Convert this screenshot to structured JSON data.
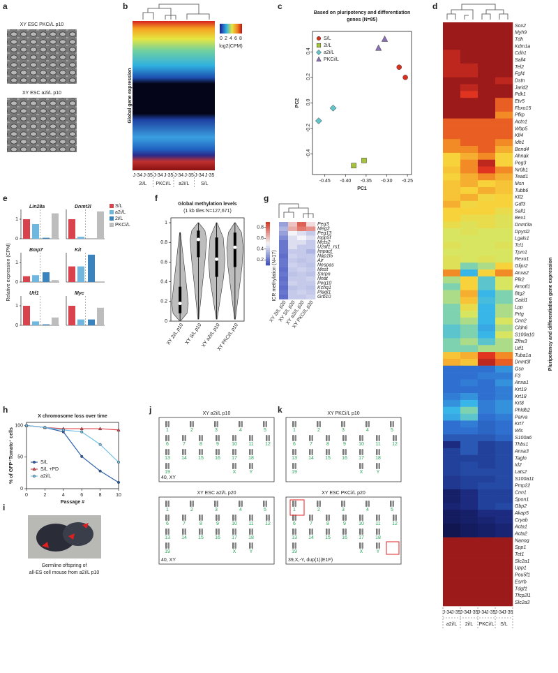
{
  "panel_letters": [
    "a",
    "b",
    "c",
    "d",
    "e",
    "f",
    "g",
    "h",
    "i",
    "j",
    "k"
  ],
  "panel_a": {
    "labels": [
      "XY ESC PKCi/L p10",
      "XY ESC a2i/L p10"
    ]
  },
  "panel_b": {
    "ylabel": "Global gene expression",
    "colorbar_ticks": [
      0,
      2,
      4,
      6,
      8
    ],
    "colorbar_label": "log2(CPM)",
    "column_labels": [
      "J-34",
      "J-35",
      "J-34",
      "J-35",
      "J-34",
      "J-35",
      "J-34",
      "J-35"
    ],
    "groups": [
      "2i/L",
      "PKCi/L",
      "a2i/L",
      "S/L"
    ]
  },
  "chart_data": [
    {
      "type": "scatter",
      "title": "Based on pluripotency and differentiation",
      "subtitle": "genes (N=85)",
      "xlabel": "PC1",
      "ylabel": "PC2",
      "legend": "upper left",
      "series": [
        {
          "name": "S/L",
          "color": "#d7301f",
          "marker": "circle",
          "x": [
            -0.27,
            -0.255
          ],
          "y": [
            0.28,
            0.2
          ]
        },
        {
          "name": "2i/L",
          "color": "#a6c43a",
          "marker": "square",
          "x": [
            -0.38,
            -0.355
          ],
          "y": [
            -0.49,
            -0.45
          ]
        },
        {
          "name": "a2i/L",
          "color": "#62c4c9",
          "marker": "diamond",
          "x": [
            -0.465,
            -0.43
          ],
          "y": [
            -0.14,
            -0.04
          ]
        },
        {
          "name": "PKCi/L",
          "color": "#8b6fb5",
          "marker": "triangle",
          "x": [
            -0.32,
            -0.305
          ],
          "y": [
            0.43,
            0.5
          ]
        }
      ],
      "xlim": [
        -0.48,
        -0.24
      ],
      "xticks": [
        -0.45,
        {
          "value": -0.4,
          "label": "-0.40"
        },
        -0.35,
        {
          "value": -0.3,
          "label": "-0.30"
        },
        -0.25
      ],
      "ylim": [
        -0.56,
        0.56
      ],
      "yticks": [
        -0.4,
        -0.2,
        {
          "value": 0,
          "label": "0.0"
        },
        0.2,
        0.4
      ]
    },
    {
      "type": "bar",
      "ylabel": "Relative expression (CPM)",
      "categories": [
        "Lin28a",
        "Dnmt3l",
        "Bmp7",
        "Kit",
        "Utf1",
        "Myc"
      ],
      "series": [
        {
          "name": "S/L",
          "color": "#d9434e",
          "values": [
            1,
            1,
            0.3,
            0.8,
            1,
            1
          ]
        },
        {
          "name": "a2i/L",
          "color": "#6fb7df",
          "values": [
            0.75,
            0.1,
            0.35,
            0.8,
            0.2,
            0.3
          ]
        },
        {
          "name": "2i/L",
          "color": "#3a83bd",
          "values": [
            0.05,
            0,
            0.5,
            1.4,
            0.05,
            0.3
          ]
        },
        {
          "name": "PKCi/L",
          "color": "#bdbdbd",
          "values": [
            1.3,
            1.4,
            0.1,
            0,
            0.4,
            0.9
          ]
        }
      ],
      "ylim": [
        0,
        1.5
      ],
      "yticks": [
        0,
        1
      ]
    },
    {
      "type": "violin",
      "title": "Global methylation levels",
      "subtitle": "(1 kb tiles N=127,671)",
      "categories": [
        "XY 2i/L p10",
        "XY S/L p10",
        "XY a2i/L p10",
        "XY PKCi/L p10"
      ],
      "min": [
        0,
        0.02,
        0.02,
        0.02
      ],
      "q1": [
        0.08,
        0.65,
        0.45,
        0.55
      ],
      "median": [
        0.18,
        0.83,
        0.63,
        0.75
      ],
      "q3": [
        0.35,
        0.92,
        0.85,
        0.9
      ],
      "max": [
        0.9,
        1,
        1,
        1
      ],
      "color": "#bdbdbd",
      "ylim": [
        0,
        1.05
      ],
      "yticks": [
        0,
        0.2,
        0.4,
        0.6,
        0.8,
        1
      ]
    },
    {
      "type": "heatmap",
      "ylabel": "ICR methylation (N=17)",
      "rows": [
        "Peg3",
        "Meg3",
        "Peg13",
        "Inpp5f",
        "Mcts2",
        "U2af1_rs1",
        "Impact",
        "Nap1l5",
        "Air",
        "Nespas",
        "Mest",
        "Snrpn",
        "Nnat",
        "Peg10",
        "Kcnq1",
        "Plagl1",
        "Grb10"
      ],
      "columns": [
        "XY 2i/L p20",
        "XY S/L p20",
        "XY a2i/L p20",
        "XY PKCi/L p20"
      ],
      "values": [
        [
          0.3,
          0.6,
          0.8,
          0.55
        ],
        [
          0.35,
          0.65,
          0.75,
          0.7
        ],
        [
          0.3,
          0.5,
          0.45,
          0.4
        ],
        [
          0.25,
          0.45,
          0.5,
          0.45
        ],
        [
          0.2,
          0.45,
          0.45,
          0.4
        ],
        [
          0.2,
          0.45,
          0.4,
          0.4
        ],
        [
          0.2,
          0.4,
          0.4,
          0.35
        ],
        [
          0.18,
          0.42,
          0.4,
          0.4
        ],
        [
          0.2,
          0.4,
          0.38,
          0.4
        ],
        [
          0.2,
          0.42,
          0.4,
          0.38
        ],
        [
          0.18,
          0.4,
          0.42,
          0.4
        ],
        [
          0.2,
          0.38,
          0.4,
          0.38
        ],
        [
          0.18,
          0.4,
          0.4,
          0.42
        ],
        [
          0.2,
          0.42,
          0.4,
          0.4
        ],
        [
          0.18,
          0.38,
          0.4,
          0.38
        ],
        [
          0.2,
          0.4,
          0.42,
          0.4
        ],
        [
          0.18,
          0.4,
          0.4,
          0.42
        ]
      ],
      "colorlim": [
        0.1,
        0.9
      ],
      "colorbar_ticks": [
        0.2,
        0.4,
        0.6,
        0.8
      ]
    },
    {
      "type": "line",
      "title": "X chromosome loss over time",
      "xlabel": "Passage #",
      "ylabel": "% of GFP⁺Tomato⁺ cells",
      "x": [
        0,
        2,
        4,
        6,
        8,
        10
      ],
      "series": [
        {
          "name": "S/L",
          "color": "#2b5fa8",
          "marker": "circle",
          "values": [
            100,
            97,
            90,
            51,
            28,
            10
          ]
        },
        {
          "name": "S/L +PD",
          "color": "#e0454c",
          "marker": "triangle",
          "values": [
            100,
            97,
            95,
            95,
            95,
            93
          ]
        },
        {
          "name": "a2i/L",
          "color": "#72c0e6",
          "marker": "circle",
          "values": [
            100,
            97,
            93,
            90,
            70,
            42
          ]
        }
      ],
      "xlim": [
        0,
        10
      ],
      "xticks": [
        0,
        2,
        4,
        6,
        8,
        10
      ],
      "ylim": [
        0,
        105
      ],
      "yticks": [
        0,
        50,
        100
      ],
      "legend": "lower left"
    },
    {
      "type": "heatmap",
      "ylabel": "Pluripotency and differentiation gene expression",
      "rows": [
        "Sox2",
        "Myh9",
        "Tdh",
        "Kdm1a",
        "Cdh1",
        "Sall4",
        "Tel2",
        "Fgf4",
        "Dstn",
        "Jarid2",
        "Pdk1",
        "Etv5",
        "Fbxo15",
        "Pfkp",
        "Actn1",
        "Wbp5",
        "Klf4",
        "Idh1",
        "Bend4",
        "Ahnak",
        "Peg3",
        "Nr0b1",
        "Tead1",
        "Msn",
        "Tubb6",
        "Klf2",
        "Gdf3",
        "Sall1",
        "Bex1",
        "Dnmt3a",
        "Dpysl2",
        "Lgals1",
        "Tcl1",
        "Tpm1",
        "Rexo1",
        "Glipr2",
        "Anxa2",
        "Plk2",
        "Arnotl1",
        "Btg2",
        "Cald1",
        "Lpp",
        "Prtg",
        "Cnn2",
        "Cldn6",
        "S100a10",
        "Zfhx3",
        "Utf1",
        "Tuba1a",
        "Dnmt3l",
        "Gsn",
        "F3",
        "Anxa1",
        "Krt19",
        "Krt18",
        "Krt8",
        "Phldb2",
        "Parva",
        "Krt7",
        "Wls",
        "S100a6",
        "Thbs1",
        "Anxa3",
        "Tagln",
        "Id2",
        "Lats2",
        "S100a11",
        "Pmp22",
        "Cnn1",
        "Spon1",
        "Gbp2",
        "Akap5",
        "Cryab",
        "Acta1",
        "Acta2",
        "Nanog",
        "Spp1",
        "Tet1",
        "Slc2a1",
        "Upp1",
        "Pou5f1",
        "Esrrb",
        "Tdgf1",
        "Tfcp2l1",
        "Slc2a3"
      ],
      "column_labels": [
        "J-34",
        "J-35",
        "J-34",
        "J-35",
        "J-34",
        "J-35",
        "J-34",
        "J-35"
      ],
      "columns": [
        "a2i/L",
        "2i/L",
        "PKCi/L",
        "S/L"
      ],
      "values": [
        [
          1,
          1,
          1,
          1
        ],
        [
          1,
          1,
          1,
          1
        ],
        [
          1,
          1,
          1,
          1
        ],
        [
          1,
          1,
          1,
          1
        ],
        [
          0.95,
          1,
          1,
          1
        ],
        [
          0.95,
          1,
          1,
          1
        ],
        [
          0.95,
          0.95,
          1,
          1
        ],
        [
          0.95,
          0.95,
          1,
          1
        ],
        [
          1,
          1,
          1,
          0.95
        ],
        [
          1,
          0.95,
          1,
          1
        ],
        [
          1,
          0.9,
          1,
          1
        ],
        [
          1,
          1,
          1,
          0.85
        ],
        [
          1,
          1,
          1,
          0.85
        ],
        [
          1,
          1,
          1,
          0.8
        ],
        [
          0.85,
          0.85,
          0.85,
          0.85
        ],
        [
          0.85,
          0.85,
          0.85,
          0.85
        ],
        [
          0.85,
          0.85,
          0.85,
          0.85
        ],
        [
          0.8,
          0.85,
          0.85,
          0.8
        ],
        [
          0.8,
          0.8,
          0.85,
          0.75
        ],
        [
          0.7,
          0.75,
          0.8,
          0.7
        ],
        [
          0.7,
          0.8,
          0.95,
          0.7
        ],
        [
          0.72,
          0.8,
          0.9,
          0.8
        ],
        [
          0.7,
          0.75,
          0.8,
          0.75
        ],
        [
          0.72,
          0.75,
          0.7,
          0.72
        ],
        [
          0.72,
          0.7,
          0.75,
          0.72
        ],
        [
          0.72,
          0.75,
          0.68,
          0.7
        ],
        [
          0.75,
          0.68,
          0.7,
          0.7
        ],
        [
          0.7,
          0.7,
          0.7,
          0.65
        ],
        [
          0.7,
          0.65,
          0.65,
          0.62
        ],
        [
          0.65,
          0.62,
          0.65,
          0.62
        ],
        [
          0.6,
          0.62,
          0.6,
          0.6
        ],
        [
          0.6,
          0.6,
          0.6,
          0.6
        ],
        [
          0.62,
          0.6,
          0.6,
          0.62
        ],
        [
          0.6,
          0.6,
          0.6,
          0.6
        ],
        [
          0.62,
          0.6,
          0.62,
          0.6
        ],
        [
          0.62,
          0.5,
          0.55,
          0.7
        ],
        [
          0.8,
          0.4,
          0.7,
          0.8
        ],
        [
          0.55,
          0.7,
          0.45,
          0.6
        ],
        [
          0.5,
          0.7,
          0.45,
          0.6
        ],
        [
          0.55,
          0.75,
          0.4,
          0.5
        ],
        [
          0.55,
          0.72,
          0.42,
          0.5
        ],
        [
          0.5,
          0.65,
          0.4,
          0.55
        ],
        [
          0.5,
          0.6,
          0.4,
          0.55
        ],
        [
          0.5,
          0.55,
          0.4,
          0.6
        ],
        [
          0.45,
          0.5,
          0.38,
          0.55
        ],
        [
          0.45,
          0.5,
          0.4,
          0.6
        ],
        [
          0.5,
          0.55,
          0.45,
          0.55
        ],
        [
          0.5,
          0.5,
          0.55,
          0.55
        ],
        [
          0.72,
          0.75,
          0.9,
          0.8
        ],
        [
          0.75,
          0.72,
          0.95,
          0.85
        ],
        [
          0.3,
          0.3,
          0.3,
          0.35
        ],
        [
          0.3,
          0.3,
          0.32,
          0.32
        ],
        [
          0.3,
          0.32,
          0.3,
          0.35
        ],
        [
          0.3,
          0.3,
          0.3,
          0.32
        ],
        [
          0.32,
          0.35,
          0.3,
          0.32
        ],
        [
          0.35,
          0.4,
          0.32,
          0.35
        ],
        [
          0.4,
          0.5,
          0.32,
          0.35
        ],
        [
          0.38,
          0.45,
          0.3,
          0.32
        ],
        [
          0.3,
          0.32,
          0.28,
          0.3
        ],
        [
          0.3,
          0.3,
          0.28,
          0.3
        ],
        [
          0.25,
          0.25,
          0.25,
          0.28
        ],
        [
          0.15,
          0.25,
          0.2,
          0.22
        ],
        [
          0.2,
          0.25,
          0.2,
          0.22
        ],
        [
          0.2,
          0.2,
          0.2,
          0.22
        ],
        [
          0.2,
          0.22,
          0.2,
          0.22
        ],
        [
          0.2,
          0.22,
          0.22,
          0.22
        ],
        [
          0.18,
          0.2,
          0.2,
          0.22
        ],
        [
          0.18,
          0.2,
          0.22,
          0.22
        ],
        [
          0.1,
          0.15,
          0.2,
          0.2
        ],
        [
          0.1,
          0.15,
          0.2,
          0.2
        ],
        [
          0.12,
          0.15,
          0.2,
          0.22
        ],
        [
          0.08,
          0.1,
          0.15,
          0.15
        ],
        [
          0.08,
          0.1,
          0.12,
          0.15
        ],
        [
          0.05,
          0.08,
          0.1,
          0.12
        ],
        [
          0.05,
          0.08,
          0.1,
          0.12
        ],
        [
          1,
          1,
          1,
          1
        ],
        [
          1,
          1,
          1,
          1
        ],
        [
          1,
          1,
          1,
          1
        ],
        [
          1,
          1,
          1,
          1
        ],
        [
          1,
          1,
          1,
          1
        ],
        [
          1,
          1,
          1,
          1
        ],
        [
          1,
          1,
          1,
          1
        ],
        [
          1,
          1,
          1,
          1
        ],
        [
          1,
          1,
          1,
          1
        ],
        [
          1,
          1,
          1,
          1
        ]
      ]
    }
  ],
  "panel_i": {
    "caption": [
      "Germline offspring of",
      "all-ES cell mouse from a2i/L p10"
    ]
  },
  "karyotypes": [
    {
      "title": "XY a2i/L p10",
      "karyotype": "40, XY",
      "chromosomes": [
        "1",
        "2",
        "3",
        "4",
        "5",
        "6",
        "7",
        "8",
        "9",
        "10",
        "11",
        "12",
        "13",
        "14",
        "15",
        "16",
        "17",
        "18",
        "19",
        "X",
        "Y"
      ]
    },
    {
      "title": "XY ESC a2i/L p20",
      "karyotype": "40, XY",
      "chromosomes": [
        "1",
        "2",
        "3",
        "4",
        "5",
        "6",
        "7",
        "8",
        "9",
        "10",
        "11",
        "12",
        "13",
        "14",
        "15",
        "16",
        "17",
        "18",
        "19",
        "X",
        "Y"
      ]
    },
    {
      "title": "XY PKCi/L p10",
      "karyotype": "",
      "chromosomes": [
        "1",
        "2",
        "3",
        "4",
        "5",
        "6",
        "7",
        "8",
        "9",
        "10",
        "11",
        "12",
        "13",
        "14",
        "15",
        "16",
        "17",
        "18",
        "19",
        "X",
        "Y"
      ]
    },
    {
      "title": "XY ESC PKCi/L p20",
      "karyotype": "39,X,-Y, dup(1)(E1F)",
      "chromosomes": [
        "1",
        "2",
        "3",
        "4",
        "5",
        "6",
        "7",
        "8",
        "9",
        "10",
        "11",
        "12",
        "13",
        "14",
        "15",
        "16",
        "17",
        "18",
        "19",
        "X",
        "Y"
      ]
    }
  ]
}
